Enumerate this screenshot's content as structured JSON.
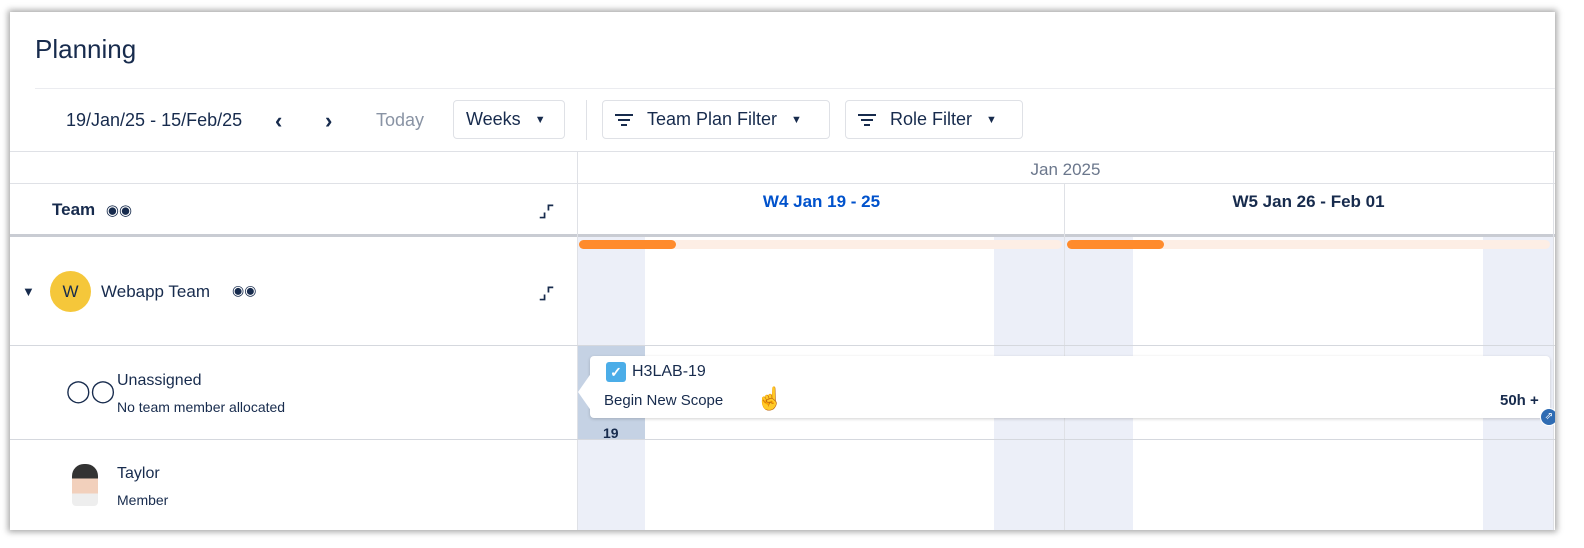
{
  "page": {
    "title": "Planning"
  },
  "toolbar": {
    "date_range": "19/Jan/25 - 15/Feb/25",
    "prev_icon": "chevron-left-icon",
    "next_icon": "chevron-right-icon",
    "prev": "‹",
    "next": "›",
    "today": "Today",
    "view": "Weeks",
    "team_plan_filter": "Team Plan Filter",
    "role_filter": "Role Filter"
  },
  "timeline": {
    "month": "Jan 2025",
    "weeks": [
      {
        "label": "W4 Jan 19 - 25",
        "capacity_pct": 20
      },
      {
        "label": "W5 Jan 26 - Feb 01",
        "capacity_pct": 20
      }
    ]
  },
  "team": {
    "header": "Team",
    "name": "Webapp Team",
    "avatar_letter": "W"
  },
  "members": [
    {
      "name": "Unassigned",
      "subtitle": "No team member allocated"
    },
    {
      "name": "Taylor",
      "subtitle": "Member"
    }
  ],
  "task": {
    "key": "H3LAB-19",
    "summary": "Begin New Scope",
    "hours": "50h +",
    "start_day": "19"
  },
  "colors": {
    "accent": "#0052cc",
    "capacity": "#ff8b2c",
    "capacity_bg": "#fdeee5",
    "weekend": "#eceff8",
    "avatar": "#f5c73a"
  }
}
